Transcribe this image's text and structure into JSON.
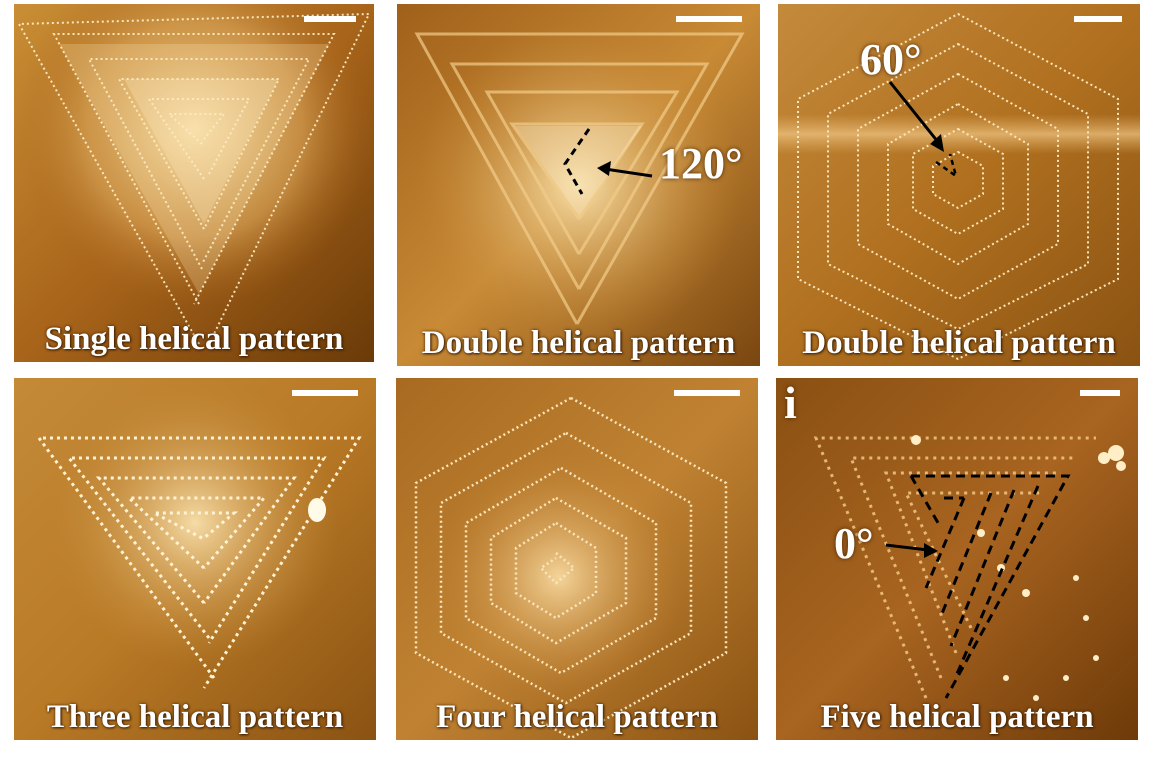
{
  "panels": [
    {
      "caption": "Single helical pattern"
    },
    {
      "caption": "Double helical pattern",
      "angle_label": "120°"
    },
    {
      "caption": "Double helical pattern",
      "angle_label": "60°"
    },
    {
      "caption": "Three helical pattern"
    },
    {
      "caption": "Four helical pattern"
    },
    {
      "caption": "Five helical pattern",
      "angle_label": "0°",
      "panel_letter": "i"
    }
  ],
  "colors": {
    "dark": "#6a3a08",
    "mid": "#b87a20",
    "light": "#f3d79a",
    "step": "#fff2cf"
  }
}
